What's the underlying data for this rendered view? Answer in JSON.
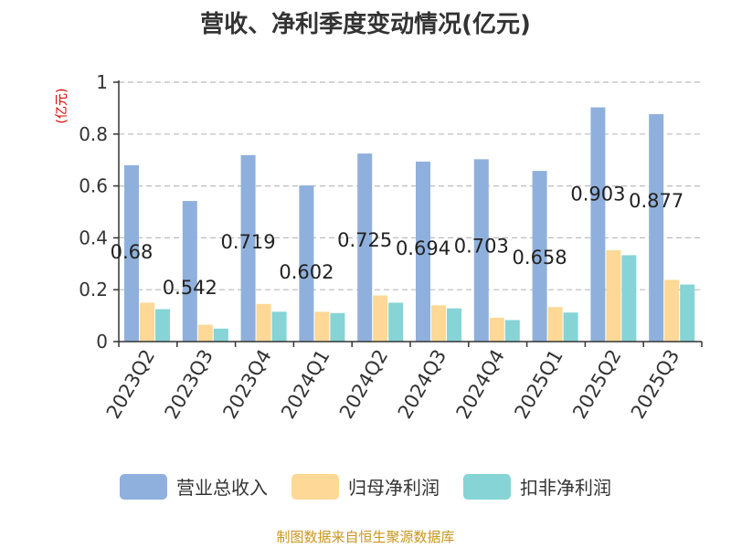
{
  "title": "营收、净利季度变动情况(亿元)",
  "source": "制图数据来自恒生聚源数据库",
  "colors": {
    "revenue": "#8fb0dc",
    "net_profit": "#fdd896",
    "deducted_profit": "#86d4d5",
    "unit_label": "#dd0000",
    "grid": "#bbbbbb",
    "axis": "#333333"
  },
  "chart_data": {
    "type": "bar",
    "title": "营收、净利季度变动情况(亿元)",
    "ylabel": "(亿元)",
    "ylim": [
      0,
      1
    ],
    "yticks": [
      "0",
      "0.2",
      "0.4",
      "0.6",
      "0.8",
      "1"
    ],
    "grid": true,
    "legend_position": "bottom",
    "categories": [
      "2023Q2",
      "2023Q3",
      "2023Q4",
      "2024Q1",
      "2024Q2",
      "2024Q3",
      "2024Q4",
      "2025Q1",
      "2025Q2",
      "2025Q3"
    ],
    "series": [
      {
        "name": "营业总收入",
        "values": [
          0.68,
          0.542,
          0.719,
          0.602,
          0.725,
          0.694,
          0.703,
          0.658,
          0.903,
          0.877
        ]
      },
      {
        "name": "归母净利润",
        "values": [
          0.15,
          0.065,
          0.145,
          0.115,
          0.178,
          0.14,
          0.092,
          0.133,
          0.352,
          0.238
        ]
      },
      {
        "name": "扣非净利润",
        "values": [
          0.125,
          0.05,
          0.115,
          0.11,
          0.15,
          0.128,
          0.083,
          0.112,
          0.333,
          0.22
        ]
      }
    ],
    "data_labels": [
      "0.68",
      "0.542",
      "0.719",
      "0.602",
      "0.725",
      "0.694",
      "0.703",
      "0.658",
      "0.903",
      "0.877"
    ]
  }
}
